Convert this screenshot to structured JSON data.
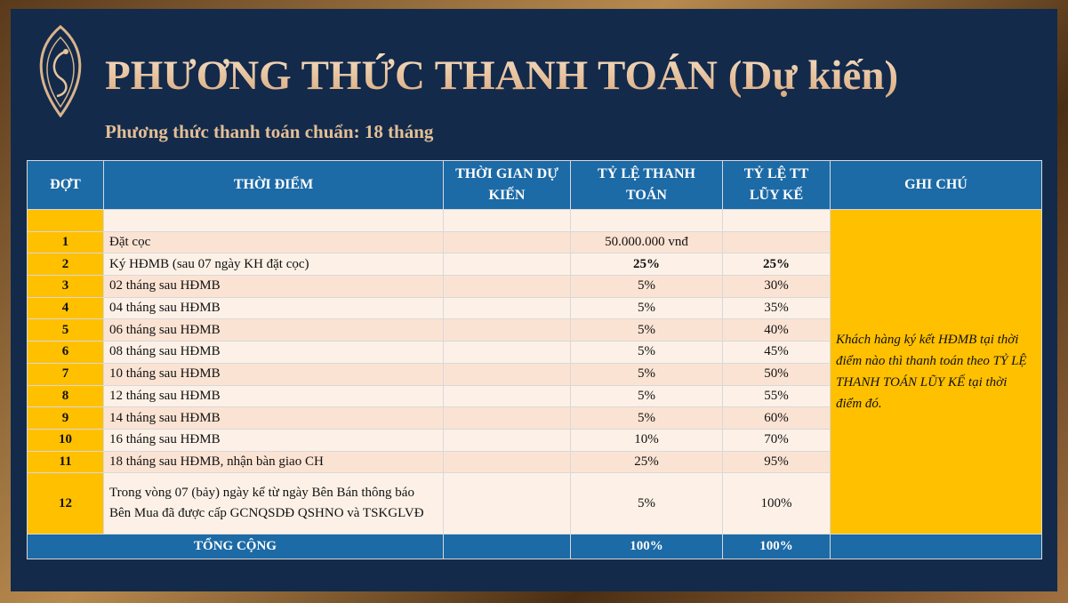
{
  "header": {
    "title": "PHƯƠNG THỨC THANH TOÁN (Dự kiến)",
    "subtitle": "Phương thức thanh toán chuẩn: 18 tháng"
  },
  "table": {
    "headers": [
      "ĐỢT",
      "THỜI ĐIỂM",
      "THỜI GIAN DỰ KIẾN",
      "TỶ LỆ THANH TOÁN",
      "TỶ LỆ TT LŨY KẾ",
      "GHI CHÚ"
    ],
    "note": "Khách hàng ký kết HĐMB tại thời điểm nào thì thanh toán theo TỶ LỆ THANH TOÁN LŨY KẾ tại thời điểm đó.",
    "rows": [
      {
        "no": "1",
        "time": "Đặt cọc",
        "rate": "50.000.000 vnđ"
      },
      {
        "no": "2",
        "time": "Ký HĐMB (sau 07 ngày KH đặt cọc)",
        "rate": "25%",
        "cumulative": "25%",
        "bold": true
      },
      {
        "no": "3",
        "time": "02 tháng sau HĐMB",
        "rate": "5%",
        "cumulative": "30%"
      },
      {
        "no": "4",
        "time": "04 tháng sau HĐMB",
        "rate": "5%",
        "cumulative": "35%"
      },
      {
        "no": "5",
        "time": "06 tháng sau HĐMB",
        "rate": "5%",
        "cumulative": "40%"
      },
      {
        "no": "6",
        "time": "08 tháng sau HĐMB",
        "rate": "5%",
        "cumulative": "45%"
      },
      {
        "no": "7",
        "time": "10 tháng sau HĐMB",
        "rate": "5%",
        "cumulative": "50%"
      },
      {
        "no": "8",
        "time": "12 tháng sau HĐMB",
        "rate": "5%",
        "cumulative": "55%"
      },
      {
        "no": "9",
        "time": "14 tháng sau HĐMB",
        "rate": "5%",
        "cumulative": "60%"
      },
      {
        "no": "10",
        "time": "16 tháng sau HĐMB",
        "rate": "10%",
        "cumulative": "70%"
      },
      {
        "no": "11",
        "time": "18 tháng sau HĐMB, nhận bàn giao CH",
        "rate": "25%",
        "cumulative": "95%"
      },
      {
        "no": "12",
        "time": "Trong vòng 07 (bảy) ngày kể từ ngày Bên Bán thông báo Bên Mua đã được cấp GCNQSDĐ QSHNO và TSKGLVĐ",
        "rate": "5%",
        "cumulative": "100%"
      }
    ],
    "total": {
      "label": "TỔNG CỘNG",
      "rate": "100%",
      "cumulative": "100%"
    }
  }
}
